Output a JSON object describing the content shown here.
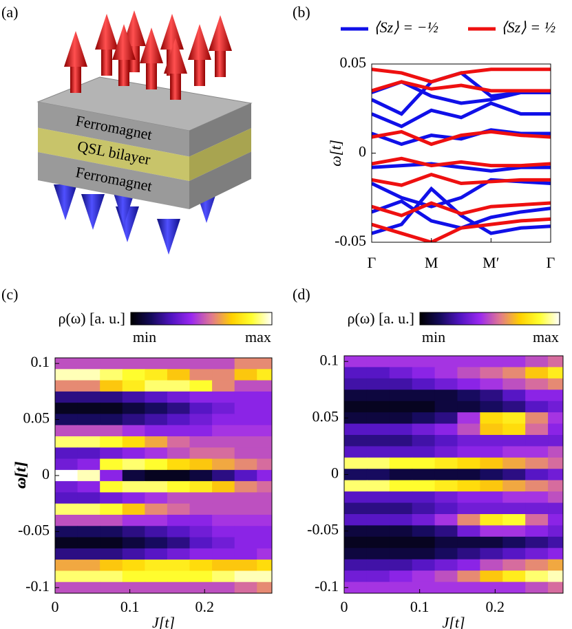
{
  "diagram": {
    "label": "(a)",
    "layers": [
      "Ferromagnet",
      "QSL bilayer",
      "Ferromagnet"
    ]
  },
  "chart_data": [
    {
      "type": "bands",
      "label": "(b)",
      "ylabel": "ω[t]",
      "x": [
        0,
        0.5,
        1,
        1.5,
        2,
        2.5,
        3
      ],
      "xlim": [
        0,
        3
      ],
      "xticks": [
        {
          "value": 0,
          "label": "Γ"
        },
        {
          "value": 1,
          "label": "M"
        },
        {
          "value": 2,
          "label": "M′"
        },
        {
          "value": 3,
          "label": "Γ"
        }
      ],
      "ylim": [
        -0.05,
        0.05
      ],
      "yticks": [
        -0.05,
        0,
        0.05
      ],
      "series": [
        {
          "name": "⟨Sz⟩ = −½",
          "color": "#1010e8",
          "bands": [
            [
              0.034,
              0.04,
              0.032,
              0.028,
              0.03,
              0.034,
              0.034
            ],
            [
              0.03,
              0.022,
              0.04,
              0.045,
              0.032,
              0.034,
              0.034
            ],
            [
              0.022,
              0.015,
              0.024,
              0.02,
              0.028,
              0.022,
              0.022
            ],
            [
              0.011,
              0.005,
              0.01,
              0.008,
              0.013,
              0.011,
              0.011
            ],
            [
              -0.008,
              -0.007,
              -0.006,
              -0.008,
              -0.01,
              -0.008,
              -0.008
            ],
            [
              -0.017,
              -0.025,
              -0.03,
              -0.025,
              -0.015,
              -0.016,
              -0.017
            ],
            [
              -0.033,
              -0.027,
              -0.038,
              -0.042,
              -0.036,
              -0.033,
              -0.031
            ],
            [
              -0.045,
              -0.04,
              -0.02,
              -0.035,
              -0.045,
              -0.042,
              -0.041
            ]
          ]
        },
        {
          "name": "⟨Sz⟩ = ½",
          "color": "#ee1010",
          "bands": [
            [
              0.047,
              0.045,
              0.04,
              0.045,
              0.047,
              0.047,
              0.047
            ],
            [
              0.035,
              0.04,
              0.036,
              0.038,
              0.035,
              0.035,
              0.035
            ],
            [
              0.009,
              0.012,
              0.005,
              0.01,
              0.012,
              0.01,
              0.009
            ],
            [
              -0.006,
              -0.003,
              -0.007,
              -0.005,
              -0.007,
              -0.007,
              -0.006
            ],
            [
              -0.015,
              -0.018,
              -0.012,
              -0.017,
              -0.016,
              -0.015,
              -0.015
            ],
            [
              -0.03,
              -0.035,
              -0.028,
              -0.034,
              -0.03,
              -0.029,
              -0.028
            ],
            [
              -0.04,
              -0.045,
              -0.05,
              -0.042,
              -0.04,
              -0.038,
              -0.037
            ]
          ]
        }
      ]
    },
    {
      "type": "heatmap",
      "label": "(c)",
      "colorbar_label": "ρ(ω) [a. u.]",
      "colorbar_min": "min",
      "colorbar_max": "max",
      "xlabel": "J[t]",
      "ylabel": "ω[t]",
      "colormap": [
        "#000000",
        "#140a5a",
        "#5014c0",
        "#9a28f0",
        "#e07890",
        "#ffd000",
        "#ffff30",
        "#ffffff"
      ],
      "x": [
        0.015,
        0.045,
        0.075,
        0.105,
        0.135,
        0.165,
        0.195,
        0.225,
        0.255,
        0.285
      ],
      "xlim": [
        0,
        0.29
      ],
      "xticks": [
        0,
        0.1,
        0.2
      ],
      "y": [
        0.1,
        0.09,
        0.08,
        0.07,
        0.06,
        0.05,
        0.04,
        0.03,
        0.02,
        0.01,
        0,
        -0.01,
        -0.02,
        -0.03,
        -0.04,
        -0.05,
        -0.06,
        -0.07,
        -0.08,
        -0.09,
        -0.1
      ],
      "ylim": [
        -0.105,
        0.105
      ],
      "yticks": [
        -0.1,
        -0.05,
        0,
        0.05,
        0.1
      ],
      "z": [
        [
          0.5,
          0.5,
          0.5,
          0.5,
          0.5,
          0.5,
          0.5,
          0.5,
          0.6,
          0.6
        ],
        [
          0.95,
          0.95,
          0.9,
          0.85,
          0.8,
          0.7,
          0.6,
          0.6,
          0.7,
          0.8
        ],
        [
          0.6,
          0.6,
          0.7,
          0.8,
          0.9,
          0.9,
          0.85,
          0.6,
          0.5,
          0.5
        ],
        [
          0.2,
          0.2,
          0.2,
          0.25,
          0.3,
          0.35,
          0.4,
          0.4,
          0.4,
          0.4
        ],
        [
          0.05,
          0.05,
          0.05,
          0.1,
          0.15,
          0.2,
          0.3,
          0.35,
          0.4,
          0.4
        ],
        [
          0.15,
          0.15,
          0.15,
          0.2,
          0.25,
          0.3,
          0.35,
          0.4,
          0.4,
          0.4
        ],
        [
          0.5,
          0.5,
          0.5,
          0.45,
          0.4,
          0.4,
          0.4,
          0.45,
          0.45,
          0.45
        ],
        [
          0.9,
          0.9,
          0.85,
          0.75,
          0.65,
          0.55,
          0.5,
          0.5,
          0.5,
          0.5
        ],
        [
          0.3,
          0.3,
          0.35,
          0.4,
          0.45,
          0.5,
          0.55,
          0.55,
          0.5,
          0.5
        ],
        [
          0.35,
          0.4,
          0.85,
          0.9,
          0.85,
          0.75,
          0.7,
          0.65,
          0.6,
          0.55
        ],
        [
          1,
          0.95,
          0.4,
          0.1,
          0.05,
          0.05,
          0.1,
          0.2,
          0.3,
          0.4
        ],
        [
          0.35,
          0.4,
          0.85,
          0.9,
          0.9,
          0.85,
          0.8,
          0.7,
          0.6,
          0.55
        ],
        [
          0.3,
          0.3,
          0.35,
          0.4,
          0.45,
          0.5,
          0.5,
          0.5,
          0.5,
          0.5
        ],
        [
          0.9,
          0.9,
          0.85,
          0.7,
          0.6,
          0.55,
          0.5,
          0.5,
          0.5,
          0.5
        ],
        [
          0.5,
          0.5,
          0.5,
          0.45,
          0.45,
          0.4,
          0.4,
          0.45,
          0.45,
          0.45
        ],
        [
          0.15,
          0.15,
          0.15,
          0.2,
          0.25,
          0.3,
          0.35,
          0.4,
          0.4,
          0.4
        ],
        [
          0.05,
          0.05,
          0.05,
          0.1,
          0.15,
          0.2,
          0.3,
          0.35,
          0.4,
          0.4
        ],
        [
          0.2,
          0.2,
          0.2,
          0.25,
          0.3,
          0.35,
          0.4,
          0.4,
          0.4,
          0.45
        ],
        [
          0.65,
          0.65,
          0.7,
          0.75,
          0.8,
          0.8,
          0.75,
          0.7,
          0.7,
          0.75
        ],
        [
          0.9,
          0.9,
          0.9,
          0.85,
          0.85,
          0.85,
          0.85,
          0.9,
          0.95,
          0.95
        ],
        [
          0.5,
          0.5,
          0.5,
          0.5,
          0.5,
          0.5,
          0.5,
          0.5,
          0.55,
          0.6
        ]
      ]
    },
    {
      "type": "heatmap",
      "label": "(d)",
      "colorbar_label": "ρ(ω) [a. u.]",
      "colorbar_min": "min",
      "colorbar_max": "max",
      "xlabel": "J[t]",
      "ylabel": "ω[t]",
      "colormap": [
        "#000000",
        "#140a5a",
        "#5014c0",
        "#9a28f0",
        "#e07890",
        "#ffd000",
        "#ffff30",
        "#ffffff"
      ],
      "x": [
        0.015,
        0.045,
        0.075,
        0.105,
        0.135,
        0.165,
        0.195,
        0.225,
        0.255,
        0.285
      ],
      "xlim": [
        0,
        0.29
      ],
      "xticks": [
        0,
        0.1,
        0.2
      ],
      "y": [
        0.1,
        0.09,
        0.08,
        0.07,
        0.06,
        0.05,
        0.04,
        0.03,
        0.02,
        0.01,
        0,
        -0.01,
        -0.02,
        -0.03,
        -0.04,
        -0.05,
        -0.06,
        -0.07,
        -0.08,
        -0.09,
        -0.1
      ],
      "ylim": [
        -0.105,
        0.105
      ],
      "yticks": [
        -0.1,
        -0.05,
        0,
        0.05,
        0.1
      ],
      "z": [
        [
          0.45,
          0.45,
          0.45,
          0.45,
          0.45,
          0.45,
          0.45,
          0.45,
          0.5,
          0.55
        ],
        [
          0.3,
          0.3,
          0.35,
          0.4,
          0.45,
          0.5,
          0.55,
          0.6,
          0.7,
          0.8
        ],
        [
          0.25,
          0.25,
          0.25,
          0.3,
          0.35,
          0.4,
          0.45,
          0.5,
          0.55,
          0.6
        ],
        [
          0.1,
          0.1,
          0.1,
          0.1,
          0.1,
          0.15,
          0.2,
          0.3,
          0.4,
          0.4
        ],
        [
          0.05,
          0.05,
          0.05,
          0.05,
          0.1,
          0.1,
          0.15,
          0.2,
          0.3,
          0.35
        ],
        [
          0.1,
          0.1,
          0.1,
          0.15,
          0.2,
          0.45,
          0.75,
          0.8,
          0.6,
          0.45
        ],
        [
          0.3,
          0.3,
          0.3,
          0.35,
          0.4,
          0.5,
          0.7,
          0.75,
          0.55,
          0.4
        ],
        [
          0.2,
          0.2,
          0.2,
          0.25,
          0.3,
          0.35,
          0.35,
          0.35,
          0.35,
          0.35
        ],
        [
          0.3,
          0.3,
          0.3,
          0.3,
          0.35,
          0.4,
          0.4,
          0.45,
          0.45,
          0.5
        ],
        [
          0.9,
          0.9,
          0.85,
          0.85,
          0.8,
          0.75,
          0.7,
          0.65,
          0.6,
          0.55
        ],
        [
          0.15,
          0.15,
          0.1,
          0.1,
          0.1,
          0.1,
          0.15,
          0.2,
          0.3,
          0.35
        ],
        [
          0.9,
          0.9,
          0.85,
          0.85,
          0.8,
          0.75,
          0.7,
          0.65,
          0.6,
          0.55
        ],
        [
          0.3,
          0.3,
          0.3,
          0.3,
          0.35,
          0.4,
          0.4,
          0.45,
          0.45,
          0.5
        ],
        [
          0.2,
          0.2,
          0.2,
          0.25,
          0.3,
          0.35,
          0.35,
          0.35,
          0.35,
          0.35
        ],
        [
          0.3,
          0.3,
          0.3,
          0.35,
          0.45,
          0.6,
          0.8,
          0.85,
          0.55,
          0.4
        ],
        [
          0.1,
          0.1,
          0.1,
          0.15,
          0.2,
          0.35,
          0.45,
          0.45,
          0.4,
          0.35
        ],
        [
          0.05,
          0.05,
          0.05,
          0.05,
          0.1,
          0.1,
          0.1,
          0.15,
          0.2,
          0.25
        ],
        [
          0.1,
          0.1,
          0.1,
          0.1,
          0.15,
          0.2,
          0.25,
          0.3,
          0.35,
          0.4
        ],
        [
          0.25,
          0.25,
          0.25,
          0.3,
          0.35,
          0.4,
          0.5,
          0.55,
          0.6,
          0.65
        ],
        [
          0.35,
          0.35,
          0.4,
          0.45,
          0.5,
          0.6,
          0.7,
          0.8,
          0.9,
          0.95
        ],
        [
          0.45,
          0.45,
          0.45,
          0.45,
          0.45,
          0.45,
          0.45,
          0.45,
          0.5,
          0.55
        ]
      ]
    }
  ]
}
